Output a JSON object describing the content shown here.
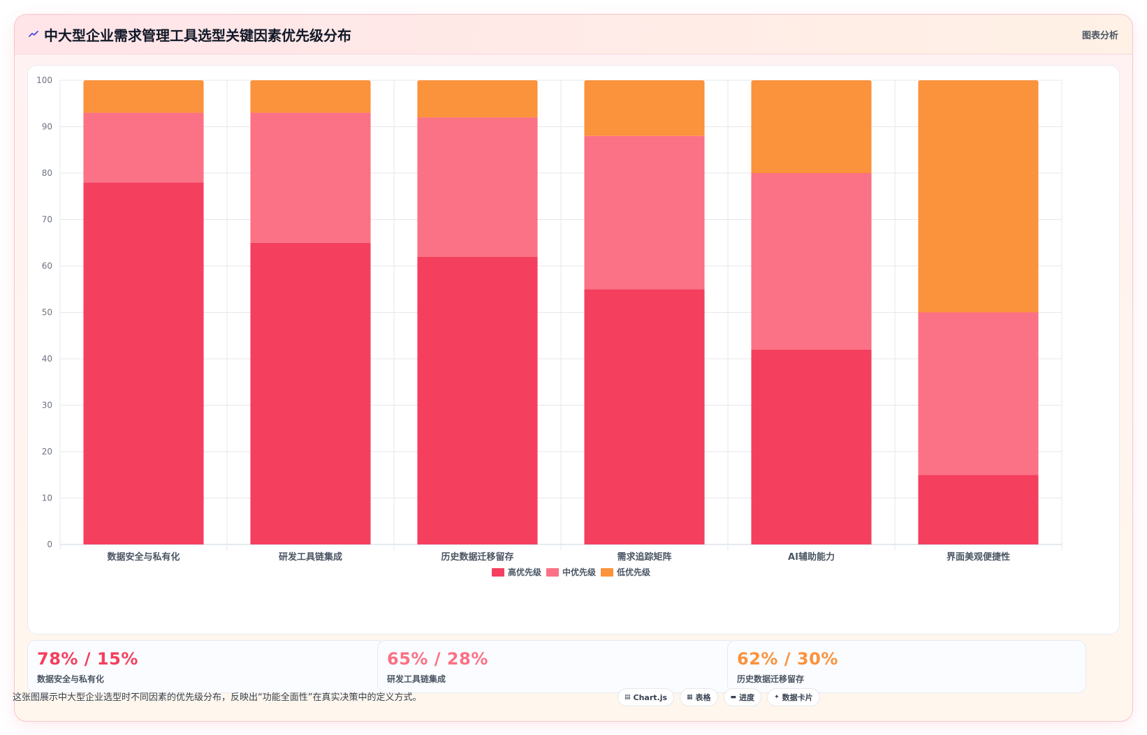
{
  "header": {
    "title": "中大型企业需求管理工具选型关键因素优先级分布",
    "tag": "图表分析"
  },
  "colors": {
    "high": "#f43f5e",
    "mid": "#fb7185",
    "low": "#fb923c",
    "grid": "#e5e7eb",
    "axis_text": "#6b7280",
    "category_text": "#4b5563"
  },
  "chart_data": {
    "type": "bar",
    "stacked": true,
    "categories": [
      "数据安全与私有化",
      "研发工具链集成",
      "历史数据迁移留存",
      "需求追踪矩阵",
      "AI辅助能力",
      "界面美观便捷性"
    ],
    "series": [
      {
        "name": "高优先级",
        "values": [
          78,
          65,
          62,
          55,
          42,
          15
        ]
      },
      {
        "name": "中优先级",
        "values": [
          15,
          28,
          30,
          33,
          38,
          35
        ]
      },
      {
        "name": "低优先级",
        "values": [
          7,
          7,
          8,
          12,
          20,
          50
        ]
      }
    ],
    "ylim": [
      0,
      100
    ],
    "yticks": [
      0,
      10,
      20,
      30,
      40,
      50,
      60,
      70,
      80,
      90,
      100
    ],
    "grid": true,
    "legend": "bottom",
    "title": "",
    "xlabel": "",
    "ylabel": ""
  },
  "stats": [
    {
      "value": "78% / 15%",
      "label": "数据安全与私有化",
      "color": "#f43f5e"
    },
    {
      "value": "65% / 28%",
      "label": "研发工具链集成",
      "color": "#fb7185"
    },
    {
      "value": "62% / 30%",
      "label": "历史数据迁移留存",
      "color": "#fb923c"
    }
  ],
  "footnote": "这张图展示中大型企业选型时不同因素的优先级分布，反映出“功能全面性”在真实决策中的定义方式。",
  "chips": [
    {
      "icon": "chart-icon",
      "glyph": "▤",
      "label": "Chart.js"
    },
    {
      "icon": "table-icon",
      "glyph": "▦",
      "label": "表格"
    },
    {
      "icon": "progress-icon",
      "glyph": "▬",
      "label": "进度"
    },
    {
      "icon": "sparkle-icon",
      "glyph": "✦",
      "label": "数据卡片"
    }
  ]
}
